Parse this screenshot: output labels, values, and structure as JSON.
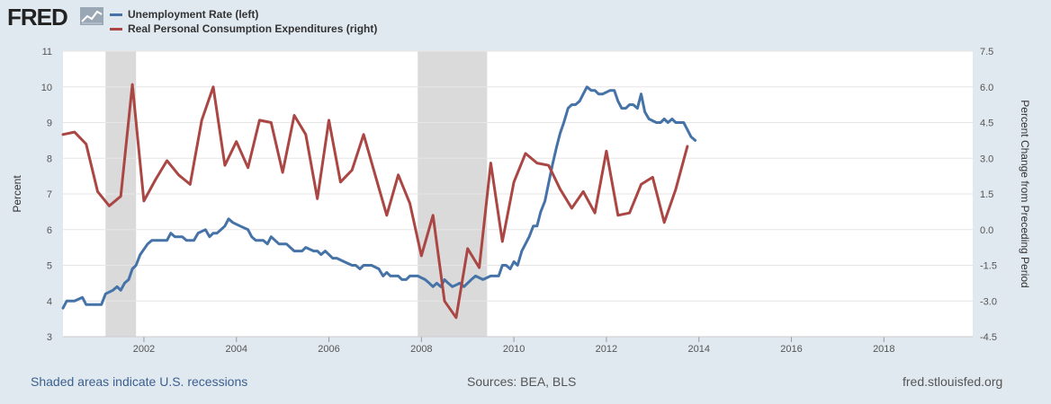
{
  "logo": {
    "text": "FRED"
  },
  "colors": {
    "unemployment": "#4572a7",
    "pce": "#aa4643",
    "recession": "#dadada",
    "plot_bg": "#ffffff",
    "grid": "#e6e6e6",
    "page_bg": "#e1e9f0"
  },
  "footer": {
    "recessions_note": "Shaded areas indicate U.S. recessions",
    "sources": "Sources: BEA, BLS",
    "site": "fred.stlouisfed.org"
  },
  "chart_data": {
    "type": "line",
    "xlim": [
      2000.25,
      2019.92
    ],
    "x_ticks": [
      "2002",
      "2004",
      "2006",
      "2008",
      "2010",
      "2012",
      "2014",
      "2016",
      "2018"
    ],
    "x_tick_values": [
      2002,
      2004,
      2006,
      2008,
      2010,
      2012,
      2014,
      2016,
      2018
    ],
    "left_axis": {
      "label": "Percent",
      "ylim": [
        3,
        11
      ],
      "ticks": [
        "3",
        "4",
        "5",
        "6",
        "7",
        "8",
        "9",
        "10",
        "11"
      ]
    },
    "right_axis": {
      "label": "Percent Change from Preceding Period",
      "ylim": [
        -4.5,
        7.5
      ],
      "ticks": [
        "-4.5",
        "-3.0",
        "-1.5",
        "0.0",
        "1.5",
        "3.0",
        "4.5",
        "6.0",
        "7.5"
      ]
    },
    "recessions": [
      [
        2001.17,
        2001.83
      ],
      [
        2007.92,
        2009.42
      ]
    ],
    "series": [
      {
        "name": "Unemployment Rate (left)",
        "axis": "left",
        "color": "#4572a7",
        "points": [
          [
            2000.25,
            3.8
          ],
          [
            2000.33,
            4.0
          ],
          [
            2000.5,
            4.0
          ],
          [
            2000.67,
            4.1
          ],
          [
            2000.75,
            3.9
          ],
          [
            2000.92,
            3.9
          ],
          [
            2001.08,
            3.9
          ],
          [
            2001.17,
            4.2
          ],
          [
            2001.33,
            4.3
          ],
          [
            2001.42,
            4.4
          ],
          [
            2001.5,
            4.3
          ],
          [
            2001.58,
            4.5
          ],
          [
            2001.67,
            4.6
          ],
          [
            2001.75,
            4.9
          ],
          [
            2001.83,
            5.0
          ],
          [
            2001.92,
            5.3
          ],
          [
            2002.08,
            5.6
          ],
          [
            2002.17,
            5.7
          ],
          [
            2002.33,
            5.7
          ],
          [
            2002.5,
            5.7
          ],
          [
            2002.58,
            5.9
          ],
          [
            2002.67,
            5.8
          ],
          [
            2002.83,
            5.8
          ],
          [
            2002.92,
            5.7
          ],
          [
            2003.08,
            5.7
          ],
          [
            2003.17,
            5.9
          ],
          [
            2003.33,
            6.0
          ],
          [
            2003.42,
            5.8
          ],
          [
            2003.5,
            5.9
          ],
          [
            2003.58,
            5.9
          ],
          [
            2003.75,
            6.1
          ],
          [
            2003.83,
            6.3
          ],
          [
            2003.92,
            6.2
          ],
          [
            2004.08,
            6.1
          ],
          [
            2004.25,
            6.0
          ],
          [
            2004.33,
            5.8
          ],
          [
            2004.42,
            5.7
          ],
          [
            2004.58,
            5.7
          ],
          [
            2004.67,
            5.6
          ],
          [
            2004.75,
            5.8
          ],
          [
            2004.92,
            5.6
          ],
          [
            2005.08,
            5.6
          ],
          [
            2005.25,
            5.4
          ],
          [
            2005.42,
            5.4
          ],
          [
            2005.5,
            5.5
          ],
          [
            2005.67,
            5.4
          ],
          [
            2005.75,
            5.4
          ],
          [
            2005.83,
            5.3
          ],
          [
            2005.92,
            5.4
          ],
          [
            2006.08,
            5.2
          ],
          [
            2006.17,
            5.2
          ],
          [
            2006.33,
            5.1
          ],
          [
            2006.5,
            5.0
          ],
          [
            2006.58,
            5.0
          ],
          [
            2006.67,
            4.9
          ],
          [
            2006.75,
            5.0
          ],
          [
            2006.83,
            5.0
          ],
          [
            2006.92,
            5.0
          ],
          [
            2007.08,
            4.9
          ],
          [
            2007.17,
            4.7
          ],
          [
            2007.25,
            4.8
          ],
          [
            2007.33,
            4.7
          ],
          [
            2007.5,
            4.7
          ],
          [
            2007.58,
            4.6
          ],
          [
            2007.67,
            4.6
          ],
          [
            2007.75,
            4.7
          ],
          [
            2007.83,
            4.7
          ],
          [
            2007.92,
            4.7
          ],
          [
            2008.08,
            4.6
          ],
          [
            2008.17,
            4.5
          ],
          [
            2008.25,
            4.4
          ],
          [
            2008.33,
            4.5
          ],
          [
            2008.42,
            4.4
          ],
          [
            2008.5,
            4.6
          ],
          [
            2008.58,
            4.5
          ],
          [
            2008.67,
            4.4
          ],
          [
            2008.83,
            4.5
          ],
          [
            2008.92,
            4.4
          ],
          [
            2009.08,
            4.6
          ],
          [
            2009.17,
            4.7
          ],
          [
            2009.33,
            4.6
          ],
          [
            2009.5,
            4.7
          ],
          [
            2009.67,
            4.7
          ],
          [
            2009.75,
            5.0
          ],
          [
            2009.83,
            5.0
          ],
          [
            2009.92,
            4.9
          ],
          [
            2010.0,
            5.1
          ],
          [
            2010.08,
            5.0
          ],
          [
            2010.17,
            5.4
          ],
          [
            2010.25,
            5.6
          ],
          [
            2010.33,
            5.8
          ],
          [
            2010.42,
            6.1
          ],
          [
            2010.5,
            6.1
          ],
          [
            2010.58,
            6.5
          ],
          [
            2010.67,
            6.8
          ],
          [
            2010.75,
            7.3
          ],
          [
            2010.83,
            7.8
          ],
          [
            2010.92,
            8.3
          ],
          [
            2011.0,
            8.7
          ],
          [
            2011.08,
            9.0
          ],
          [
            2011.17,
            9.4
          ],
          [
            2011.25,
            9.5
          ],
          [
            2011.33,
            9.5
          ],
          [
            2011.42,
            9.6
          ],
          [
            2011.5,
            9.8
          ],
          [
            2011.58,
            10.0
          ],
          [
            2011.67,
            9.9
          ],
          [
            2011.75,
            9.9
          ],
          [
            2011.83,
            9.8
          ],
          [
            2011.92,
            9.8
          ],
          [
            2012.08,
            9.9
          ],
          [
            2012.17,
            9.9
          ],
          [
            2012.25,
            9.6
          ],
          [
            2012.33,
            9.4
          ],
          [
            2012.42,
            9.4
          ],
          [
            2012.5,
            9.5
          ],
          [
            2012.58,
            9.5
          ],
          [
            2012.67,
            9.4
          ],
          [
            2012.75,
            9.8
          ],
          [
            2012.83,
            9.3
          ],
          [
            2012.92,
            9.1
          ],
          [
            2013.08,
            9.0
          ],
          [
            2013.17,
            9.0
          ],
          [
            2013.25,
            9.1
          ],
          [
            2013.33,
            9.0
          ],
          [
            2013.42,
            9.1
          ],
          [
            2013.5,
            9.0
          ],
          [
            2013.67,
            9.0
          ],
          [
            2013.75,
            8.8
          ],
          [
            2013.83,
            8.6
          ],
          [
            2013.92,
            8.5
          ]
        ]
      },
      {
        "name": "Real Personal Consumption Expenditures (right)",
        "axis": "right",
        "color": "#aa4643",
        "points": [
          [
            2000.25,
            4.0
          ],
          [
            2000.5,
            4.1
          ],
          [
            2000.75,
            3.6
          ],
          [
            2001.0,
            1.6
          ],
          [
            2001.25,
            1.0
          ],
          [
            2001.5,
            1.4
          ],
          [
            2001.75,
            6.1
          ],
          [
            2002.0,
            1.2
          ],
          [
            2002.25,
            2.1
          ],
          [
            2002.5,
            2.9
          ],
          [
            2002.75,
            2.3
          ],
          [
            2003.0,
            1.9
          ],
          [
            2003.25,
            4.6
          ],
          [
            2003.5,
            6.0
          ],
          [
            2003.75,
            2.7
          ],
          [
            2004.0,
            3.7
          ],
          [
            2004.25,
            2.6
          ],
          [
            2004.5,
            4.6
          ],
          [
            2004.75,
            4.5
          ],
          [
            2005.0,
            2.4
          ],
          [
            2005.25,
            4.8
          ],
          [
            2005.5,
            4.0
          ],
          [
            2005.75,
            1.3
          ],
          [
            2006.0,
            4.6
          ],
          [
            2006.25,
            2.0
          ],
          [
            2006.5,
            2.5
          ],
          [
            2006.75,
            4.0
          ],
          [
            2007.0,
            2.3
          ],
          [
            2007.25,
            0.6
          ],
          [
            2007.5,
            2.3
          ],
          [
            2007.75,
            1.1
          ],
          [
            2008.0,
            -1.1
          ],
          [
            2008.25,
            0.6
          ],
          [
            2008.5,
            -3.0
          ],
          [
            2008.75,
            -3.7
          ],
          [
            2009.0,
            -0.8
          ],
          [
            2009.25,
            -1.6
          ],
          [
            2009.5,
            2.8
          ],
          [
            2009.75,
            -0.5
          ],
          [
            2010.0,
            2.0
          ],
          [
            2010.25,
            3.2
          ],
          [
            2010.5,
            2.8
          ],
          [
            2010.75,
            2.7
          ],
          [
            2011.0,
            1.7
          ],
          [
            2011.25,
            0.9
          ],
          [
            2011.5,
            1.6
          ],
          [
            2011.75,
            0.7
          ],
          [
            2012.0,
            3.3
          ],
          [
            2012.25,
            0.6
          ],
          [
            2012.5,
            0.7
          ],
          [
            2012.75,
            1.9
          ],
          [
            2013.0,
            2.2
          ],
          [
            2013.25,
            0.3
          ],
          [
            2013.5,
            1.7
          ],
          [
            2013.75,
            3.5
          ]
        ]
      }
    ]
  }
}
